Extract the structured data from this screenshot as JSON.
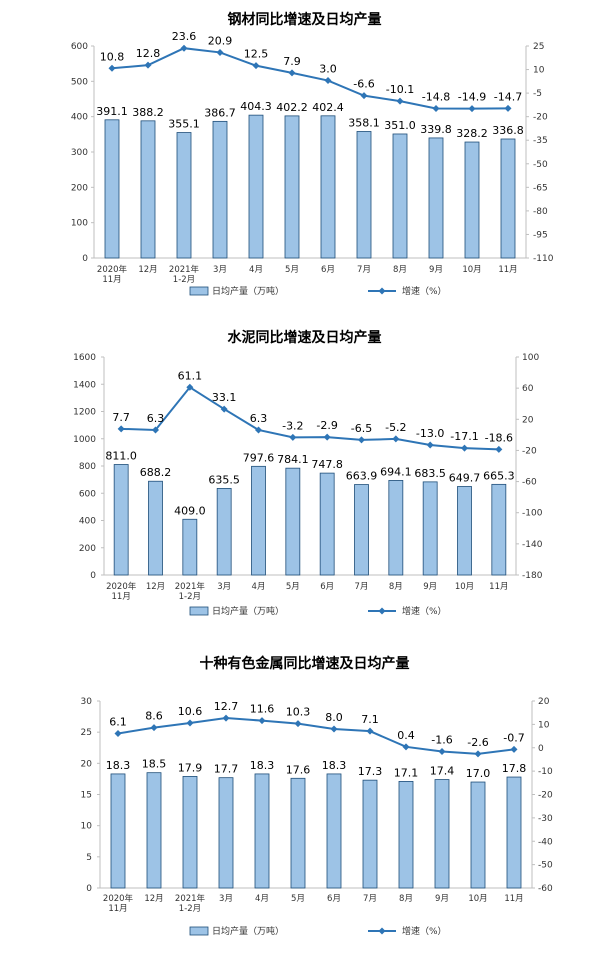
{
  "colors": {
    "bar_fill": "#9dc3e6",
    "bar_stroke": "#1f4e79",
    "line": "#2e75b6",
    "axis": "#bfbfbf"
  },
  "chart_data": [
    {
      "type": "bar",
      "title": "钢材同比增速及日均产量",
      "categories": [
        "2020年|11月",
        "12月",
        "2021年|1-2月",
        "3月",
        "4月",
        "5月",
        "6月",
        "7月",
        "8月",
        "9月",
        "10月",
        "11月"
      ],
      "y_left": {
        "min": 0,
        "max": 600,
        "step": 100
      },
      "y_right": {
        "min": -110,
        "max": 25,
        "step": 15
      },
      "series": [
        {
          "name": "日均产量（万吨）",
          "kind": "bar",
          "axis": "left",
          "values": [
            391.1,
            388.2,
            355.1,
            386.7,
            404.3,
            402.2,
            402.4,
            358.1,
            351.0,
            339.8,
            328.2,
            336.8
          ],
          "labels": [
            "391.1",
            "388.2",
            "355.1",
            "386.7",
            "404.3",
            "402.2",
            "402.4",
            "358.1",
            "351.0",
            "339.8",
            "328.2",
            "336.8"
          ]
        },
        {
          "name": "增速（%）",
          "kind": "line",
          "axis": "right",
          "values": [
            10.8,
            12.8,
            23.6,
            20.9,
            12.5,
            7.9,
            3.0,
            -6.6,
            -10.1,
            -14.8,
            -14.9,
            -14.7
          ],
          "labels": [
            "10.8",
            "12.8",
            "23.6",
            "20.9",
            "12.5",
            "7.9",
            "3.0",
            "-6.6",
            "-10.1",
            "-14.8",
            "-14.9",
            "-14.7"
          ]
        }
      ]
    },
    {
      "type": "bar",
      "title": "水泥同比增速及日均产量",
      "categories": [
        "2020年|11月",
        "12月",
        "2021年|1-2月",
        "3月",
        "4月",
        "5月",
        "6月",
        "7月",
        "8月",
        "9月",
        "10月",
        "11月"
      ],
      "y_left": {
        "min": 0,
        "max": 1600,
        "step": 200
      },
      "y_right": {
        "min": -180,
        "max": 100,
        "step": 40
      },
      "series": [
        {
          "name": "日均产量（万吨）",
          "kind": "bar",
          "axis": "left",
          "values": [
            811.0,
            688.2,
            409.0,
            635.5,
            797.6,
            784.1,
            747.8,
            663.9,
            694.1,
            683.5,
            649.7,
            665.3
          ],
          "labels": [
            "811.0",
            "688.2",
            "409.0",
            "635.5",
            "797.6",
            "784.1",
            "747.8",
            "663.9",
            "694.1",
            "683.5",
            "649.7",
            "665.3"
          ]
        },
        {
          "name": "增速（%）",
          "kind": "line",
          "axis": "right",
          "values": [
            7.7,
            6.3,
            61.1,
            33.1,
            6.3,
            -3.2,
            -2.9,
            -6.5,
            -5.2,
            -13.0,
            -17.1,
            -18.6
          ],
          "labels": [
            "7.7",
            "6.3",
            "61.1",
            "33.1",
            "6.3",
            "-3.2",
            "-2.9",
            "-6.5",
            "-5.2",
            "-13.0",
            "-17.1",
            "-18.6"
          ]
        }
      ]
    },
    {
      "type": "bar",
      "title": "十种有色金属同比增速及日均产量",
      "categories": [
        "2020年|11月",
        "12月",
        "2021年|1-2月",
        "3月",
        "4月",
        "5月",
        "6月",
        "7月",
        "8月",
        "9月",
        "10月",
        "11月"
      ],
      "y_left": {
        "min": 0,
        "max": 30,
        "step": 5
      },
      "y_right": {
        "min": -60,
        "max": 20,
        "step": 10
      },
      "series": [
        {
          "name": "日均产量（万吨）",
          "kind": "bar",
          "axis": "left",
          "values": [
            18.3,
            18.5,
            17.9,
            17.7,
            18.3,
            17.6,
            18.3,
            17.3,
            17.1,
            17.4,
            17.0,
            17.8
          ],
          "labels": [
            "18.3",
            "18.5",
            "17.9",
            "17.7",
            "18.3",
            "17.6",
            "18.3",
            "17.3",
            "17.1",
            "17.4",
            "17.0",
            "17.8"
          ]
        },
        {
          "name": "增速（%）",
          "kind": "line",
          "axis": "right",
          "values": [
            6.1,
            8.6,
            10.6,
            12.7,
            11.6,
            10.3,
            8.0,
            7.1,
            0.4,
            -1.6,
            -2.6,
            -0.7
          ],
          "labels": [
            "6.1",
            "8.6",
            "10.6",
            "12.7",
            "11.6",
            "10.3",
            "8.0",
            "7.1",
            "0.4",
            "-1.6",
            "-2.6",
            "-0.7"
          ]
        }
      ]
    }
  ]
}
